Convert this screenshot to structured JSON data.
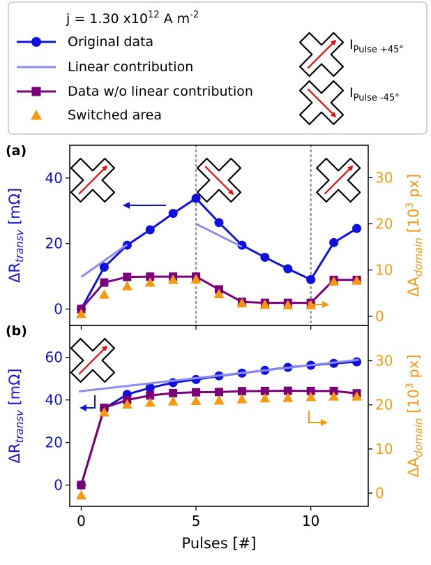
{
  "legend": {
    "current": {
      "prefix": "j = 1.30 x10",
      "exp": "12",
      "unit": " A m",
      "unit_exp": "-2"
    },
    "entries": [
      {
        "label": "Original data",
        "color": "#1010e0",
        "marker": "circle"
      },
      {
        "label": "Linear contribution",
        "color": "#8c8cf0",
        "marker": "line"
      },
      {
        "label": "Data w/o linear contribution",
        "color": "#7a007a",
        "marker": "square"
      },
      {
        "label": "Switched area",
        "color": "#f59a10",
        "marker": "triangle"
      }
    ],
    "pulse_icons": [
      {
        "label_main": "I",
        "label_sub": "Pulse +45°",
        "arrow": "+45",
        "icon": "cross-pulse-icon"
      },
      {
        "label_main": "I",
        "label_sub": "Pulse -45°",
        "arrow": "-45",
        "icon": "cross-pulse-icon"
      }
    ]
  },
  "chart_data": [
    {
      "panel": "(a)",
      "type": "line",
      "xlabel": "Pulses [#]",
      "ylabel_left": {
        "main": "ΔR",
        "sub": "transv",
        "unit": " [mΩ]"
      },
      "ylabel_right": {
        "main": "ΔA",
        "sub": "domain",
        "unit_pre": " [10",
        "unit_exp": "3",
        "unit_post": " px]"
      },
      "xlim": [
        -0.5,
        12.5
      ],
      "ylim_left": [
        -5,
        50
      ],
      "ylim_right": [
        -2,
        37
      ],
      "yticks_left": [
        0,
        20,
        40
      ],
      "yticks_right": [
        0,
        10,
        20,
        30
      ],
      "vlines": [
        5,
        10
      ],
      "series": [
        {
          "name": "Original data",
          "axis": "left",
          "color": "#1010e0",
          "marker": "circle",
          "x": [
            0,
            1,
            2,
            3,
            4,
            5,
            6,
            7,
            8,
            9,
            10,
            11,
            12
          ],
          "y": [
            0,
            12.8,
            19.5,
            24.2,
            29.2,
            33.8,
            26.4,
            19.5,
            15.8,
            12.3,
            9.0,
            20.3,
            24.6
          ]
        },
        {
          "name": "Linear contribution",
          "axis": "left",
          "color": "#8c8cf0",
          "marker": "none",
          "segments": [
            {
              "x": [
                0,
                2
              ],
              "y": [
                9.8,
                19.7
              ]
            },
            {
              "x": [
                5,
                7
              ],
              "y": [
                26.0,
                19.0
              ]
            }
          ]
        },
        {
          "name": "Data w/o linear contribution",
          "axis": "left",
          "color": "#7a007a",
          "marker": "square",
          "x": [
            0,
            1,
            2,
            3,
            4,
            5,
            6,
            7,
            8,
            9,
            10,
            11,
            12
          ],
          "y": [
            0,
            8.1,
            9.8,
            9.9,
            9.9,
            9.9,
            6.0,
            2.2,
            1.9,
            1.9,
            1.9,
            8.9,
            8.9
          ]
        },
        {
          "name": "Switched area",
          "axis": "right",
          "color": "#f59a10",
          "marker": "triangle",
          "x": [
            0,
            1,
            2,
            3,
            4,
            5,
            6,
            7,
            8,
            9,
            10,
            11,
            12
          ],
          "y": [
            0.5,
            4.7,
            6.5,
            7.3,
            7.9,
            8.0,
            4.8,
            2.8,
            2.5,
            2.4,
            2.4,
            7.5,
            7.7
          ]
        }
      ],
      "icons": [
        {
          "x": 0.5,
          "arrow": "+45"
        },
        {
          "x": 6.0,
          "arrow": "-45"
        },
        {
          "x": 11.2,
          "arrow": "+45"
        }
      ]
    },
    {
      "panel": "(b)",
      "type": "line",
      "xlabel": "Pulses [#]",
      "ylabel_left": {
        "main": "ΔR",
        "sub": "transv",
        "unit": " [mΩ]"
      },
      "ylabel_right": {
        "main": "ΔA",
        "sub": "domain",
        "unit_pre": " [10",
        "unit_exp": "3",
        "unit_post": " px]"
      },
      "xlim": [
        -0.5,
        12.5
      ],
      "ylim_left": [
        -10,
        75
      ],
      "ylim_right": [
        -3,
        38
      ],
      "yticks_left": [
        0,
        20,
        40,
        60
      ],
      "yticks_right": [
        0,
        10,
        20,
        30
      ],
      "xticks": [
        0,
        5,
        10
      ],
      "series": [
        {
          "name": "Original data",
          "axis": "left",
          "color": "#1010e0",
          "marker": "circle",
          "x": [
            0,
            1,
            2,
            3,
            4,
            5,
            6,
            7,
            8,
            9,
            10,
            11,
            12
          ],
          "y": [
            0,
            36.0,
            42.6,
            45.7,
            48.1,
            49.6,
            51.3,
            52.6,
            53.9,
            55.3,
            56.3,
            57.2,
            57.9
          ]
        },
        {
          "name": "Linear contribution",
          "axis": "left",
          "color": "#8c8cf0",
          "marker": "none",
          "segments": [
            {
              "x": [
                -0.1,
                12.1
              ],
              "y": [
                44.0,
                58.9
              ]
            }
          ]
        },
        {
          "name": "Data w/o linear contribution",
          "axis": "left",
          "color": "#7a007a",
          "marker": "square",
          "x": [
            0,
            1,
            2,
            3,
            4,
            5,
            6,
            7,
            8,
            9,
            10,
            11,
            12
          ],
          "y": [
            0,
            36.3,
            40.0,
            42.1,
            43.2,
            43.6,
            43.7,
            44.1,
            44.2,
            44.3,
            44.2,
            44.2,
            43.1
          ]
        },
        {
          "name": "Switched area",
          "axis": "right",
          "color": "#f59a10",
          "marker": "triangle",
          "x": [
            0,
            1,
            2,
            3,
            4,
            5,
            6,
            7,
            8,
            9,
            10,
            11,
            12
          ],
          "y": [
            -0.5,
            18.3,
            20.1,
            20.5,
            20.8,
            20.9,
            21.0,
            21.3,
            21.5,
            21.6,
            21.8,
            21.9,
            21.9
          ]
        }
      ],
      "icons": [
        {
          "x": 0.5,
          "arrow": "+45"
        }
      ]
    }
  ]
}
